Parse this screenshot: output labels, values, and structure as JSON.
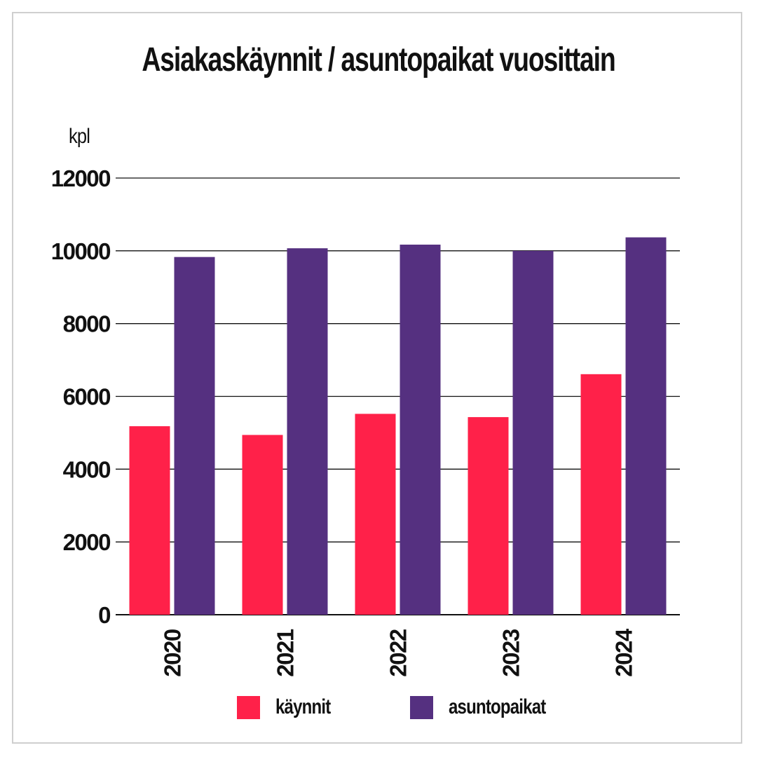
{
  "colors": {
    "kaynnit": "#ff2149",
    "asuntopaikat": "#553080",
    "gridline": "#111111",
    "frame": "#cfcfcf"
  },
  "chart_data": {
    "type": "bar",
    "title": "Asiakaskäynnit / asuntopaikat vuosittain",
    "ylabel": "kpl",
    "xlabel": "",
    "ylim": [
      0,
      12000
    ],
    "yticks": [
      "0",
      "2000",
      "4000",
      "6000",
      "8000",
      "10000",
      "12000"
    ],
    "categories": [
      "2020",
      "2021",
      "2022",
      "2023",
      "2024"
    ],
    "series": [
      {
        "name": "käynnit",
        "values": [
          5180,
          4940,
          5520,
          5430,
          6610
        ]
      },
      {
        "name": "asuntopaikat",
        "values": [
          9830,
          10070,
          10170,
          10000,
          10370
        ]
      }
    ],
    "grid": true,
    "legend": "bottom"
  }
}
